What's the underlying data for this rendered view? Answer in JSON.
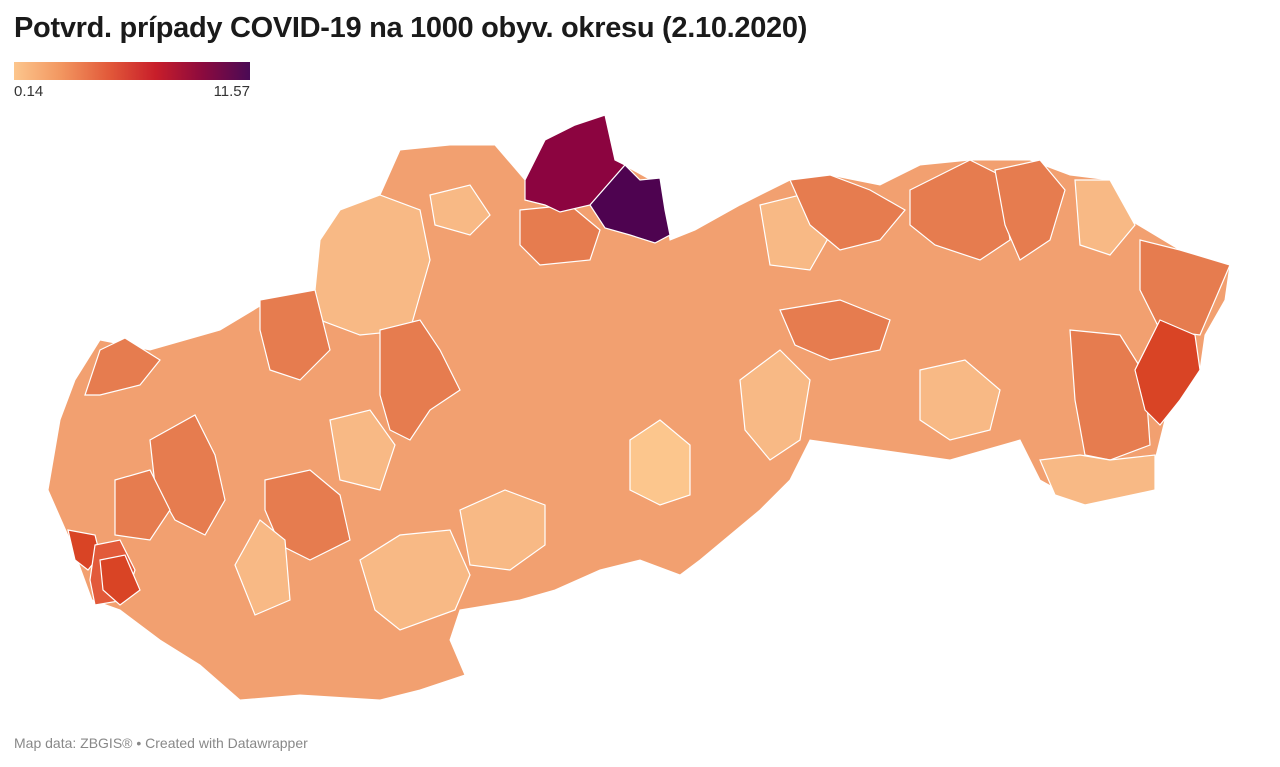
{
  "title": "Potvrd. prípady COVID-19 na 1000 obyv. okresu (2.10.2020)",
  "legend": {
    "min_label": "0.14",
    "max_label": "11.57",
    "gradient": [
      "#fcc68d",
      "#f29660",
      "#e25a3a",
      "#c81e2a",
      "#8b0a3e",
      "#4a0a55"
    ]
  },
  "footer": "Map data: ZBGIS® • Created with Datawrapper",
  "colors": {
    "border": "#ffffff",
    "light": "#f8b985",
    "mid": "#f0945f",
    "dark": "#e67c4f",
    "red": "#d94425",
    "crimson": "#8c0440",
    "purple": "#4e0350"
  }
}
